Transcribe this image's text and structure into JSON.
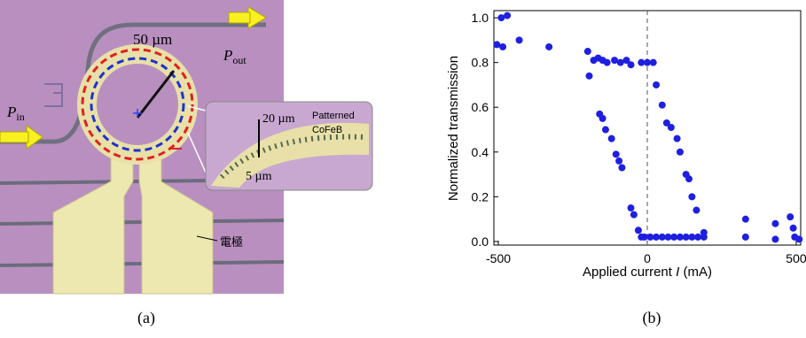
{
  "figure_a": {
    "caption": "(a)",
    "ring_label": "50 µm",
    "p_out": {
      "symbol": "P",
      "subscript": "out"
    },
    "p_in": {
      "symbol": "P",
      "subscript": "in"
    },
    "inset_width": "20 µm",
    "inset_material_1": "Patterned",
    "inset_material_2": "CoFeB",
    "inset_gap": "5 µm",
    "electrode": "電極"
  },
  "chart_data": {
    "type": "scatter",
    "caption": "(b)",
    "ylabel": "Normalized transmission",
    "xlabel": {
      "text": "Applied current",
      "variable": "I",
      "unit": "(mA)"
    },
    "color": "#1f1fe0",
    "x": [
      -505,
      -490,
      -470,
      -485,
      -430,
      -330,
      -200,
      -195,
      -180,
      -165,
      -150,
      -135,
      -110,
      -90,
      -70,
      -55,
      -20,
      0,
      20,
      -160,
      -150,
      -140,
      -120,
      -105,
      -95,
      -85,
      -55,
      -45,
      -30,
      -20,
      30,
      50,
      65,
      80,
      100,
      110,
      130,
      140,
      150,
      165,
      190,
      -10,
      10,
      30,
      50,
      70,
      90,
      110,
      130,
      150,
      170,
      190,
      330,
      330,
      430,
      430,
      480,
      490,
      495,
      510
    ],
    "values": [
      0.88,
      1.0,
      1.01,
      0.87,
      0.9,
      0.87,
      0.85,
      0.74,
      0.81,
      0.82,
      0.81,
      0.8,
      0.81,
      0.8,
      0.81,
      0.79,
      0.8,
      0.8,
      0.8,
      0.57,
      0.55,
      0.5,
      0.46,
      0.39,
      0.36,
      0.33,
      0.15,
      0.12,
      0.05,
      0.02,
      0.7,
      0.61,
      0.53,
      0.51,
      0.46,
      0.4,
      0.3,
      0.28,
      0.2,
      0.14,
      0.04,
      0.02,
      0.02,
      0.02,
      0.02,
      0.02,
      0.02,
      0.02,
      0.02,
      0.02,
      0.02,
      0.02,
      0.1,
      0.02,
      0.08,
      0.01,
      0.11,
      0.06,
      0.02,
      0.01
    ],
    "xlim": [
      -515,
      515
    ],
    "ylim": [
      -0.016,
      1.032
    ],
    "xticks": [
      -500,
      0,
      500
    ],
    "yticks": [
      {
        "value": 0,
        "label": "0.0"
      },
      {
        "value": 0.2,
        "label": "0.2"
      },
      {
        "value": 0.4,
        "label": "0.4"
      },
      {
        "value": 0.6,
        "label": "0.6"
      },
      {
        "value": 0.8,
        "label": "0.8"
      },
      {
        "value": 1,
        "label": "1.0"
      }
    ],
    "vline": 0
  }
}
